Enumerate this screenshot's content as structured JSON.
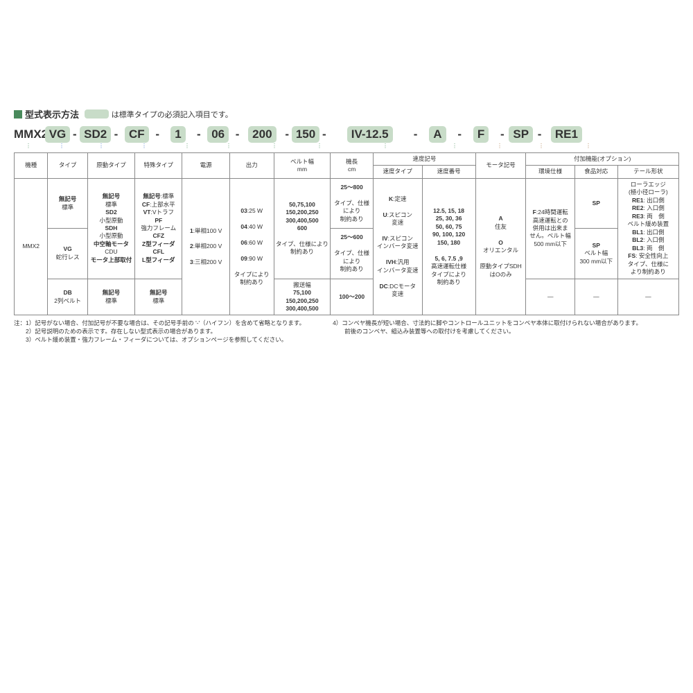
{
  "colors": {
    "accent_green": "#4a8a5c",
    "chip_bg": "#c8dcc8",
    "blue_bg": "#e0e8f5",
    "brown_bg": "#f0e8d8",
    "border": "#888888",
    "text": "#333333",
    "dot_green": "#5a9a6c",
    "dot_blue": "#4a7acc",
    "dot_brown": "#b08050"
  },
  "title": {
    "main": "型式表示方法",
    "legend_suffix": "は標準タイプの必須記入項目です。"
  },
  "model": {
    "prefix": "MMX2-",
    "segments": [
      "VG",
      "SD2",
      "CF",
      "1",
      "06",
      "200",
      "150",
      "IV-12.5",
      "A",
      "F",
      "SP",
      "RE1"
    ]
  },
  "headers": {
    "machine": "機種",
    "type": "タイプ",
    "drive_type": "原動タイプ",
    "special_type": "特殊タイプ",
    "power": "電源",
    "output": "出力",
    "belt_width": "ベルト幅\nmm",
    "length": "機長\ncm",
    "speed_group": "速度記号",
    "speed_type": "速度タイプ",
    "speed_no": "速度番号",
    "motor": "モータ記号",
    "addon_group": "付加機能(オプション)",
    "env": "環境仕様",
    "food": "食品対応",
    "tail": "テール形状"
  },
  "cells": {
    "machine": "MMX2",
    "type1": {
      "code": "無記号",
      "label": "標準"
    },
    "type2": {
      "code": "VG",
      "label": "蛇行レス"
    },
    "type3": {
      "code": "DB",
      "label": "2列ベルト"
    },
    "drive1": "無記号\n標準\nSD2\n小型原動\nSDH\n小型原動\n中空軸モータ\nCDU\nモータ上部取付",
    "drive2": {
      "code": "無記号",
      "label": "標準"
    },
    "special1": "無記号:標準\nCF:上部水平\nVT:Vトラフ\nPF\n強力フレーム\nCFZ\nZ型フィーダ\nCFL\nL型フィーダ",
    "special2": {
      "code": "無記号",
      "label": "標準"
    },
    "power": "1:単相100 V\n\n2:単相200 V\n\n3:三相200 V",
    "output": "03:25 W\n\n04:40 W\n\n06:60 W\n\n09:90 W\n\nタイプにより\n制約あり",
    "belt1": "50,75,100\n150,200,250\n300,400,500\n600\n\nタイプ、仕様により\n制約あり",
    "belt2": "搬送幅\n75,100\n150,200,250\n300,400,500",
    "len1": "25～800\n\nタイプ、仕様\nにより\n制約あり",
    "len2": "25～600\n\nタイプ、仕様\nにより\n制約あり",
    "len3": "100～200",
    "speed_type": "K:定速\n\nU:スピコン\n変速\n\nIV:スピコン\nインバータ変速\n\nIVH:汎用\nインバータ変速\n\nDC:DCモータ\n変速",
    "speed_no": "12.5, 15, 18\n25, 30, 36\n50, 60, 75\n90, 100, 120\n150, 180\n\n5, 6, 7.5 ,9\n高速運転仕様\nタイプにより\n制約あり",
    "motor": "A\n住友\n\nO\nオリエンタル\n\n原動タイプSDH\nはOのみ",
    "env": "F:24時間運転\n高速運転との\n併用は出来ま\nせん。ベルト幅\n500 mm以下",
    "food1": "SP",
    "food2": "SP\nベルト幅\n300 mm以下",
    "tail": "ローラエッジ\n(極小径ローラ)\nRE1: 出口側\nRE2: 入口側\nRE3: 両　側\nベルト緩め装置\nBL1: 出口側\nBL2: 入口側\nBL3: 両　側\nFS: 安全性向上\nタイプ、仕様に\nより制約あり",
    "dash": "—"
  },
  "notes": {
    "left": [
      "注：1）記号がない場合、付加記号が不要な場合は、その記号手前の '-'（ハイフン）を含めて省略となります。",
      "　　2）記号説明のための表示です。存在しない型式表示の場合があります。",
      "　　3）ベルト緩め装置・強力フレーム・フィーダについては、オプションページを参照してください。"
    ],
    "right": [
      "4）コンベヤ機長が短い場合、寸法的に脚やコントロールユニットをコンベヤ本体に取付けられない場合があります。",
      "　　前後のコンベヤ、組込み装置等への取付けを考慮してください。"
    ]
  },
  "widths": {
    "machine": 44,
    "type": 52,
    "drive": 62,
    "special": 62,
    "power": 62,
    "output": 58,
    "belt": 74,
    "len": 56,
    "stype": 64,
    "sno": 70,
    "motor": 66,
    "env": 64,
    "food": 56,
    "tail": 80
  }
}
